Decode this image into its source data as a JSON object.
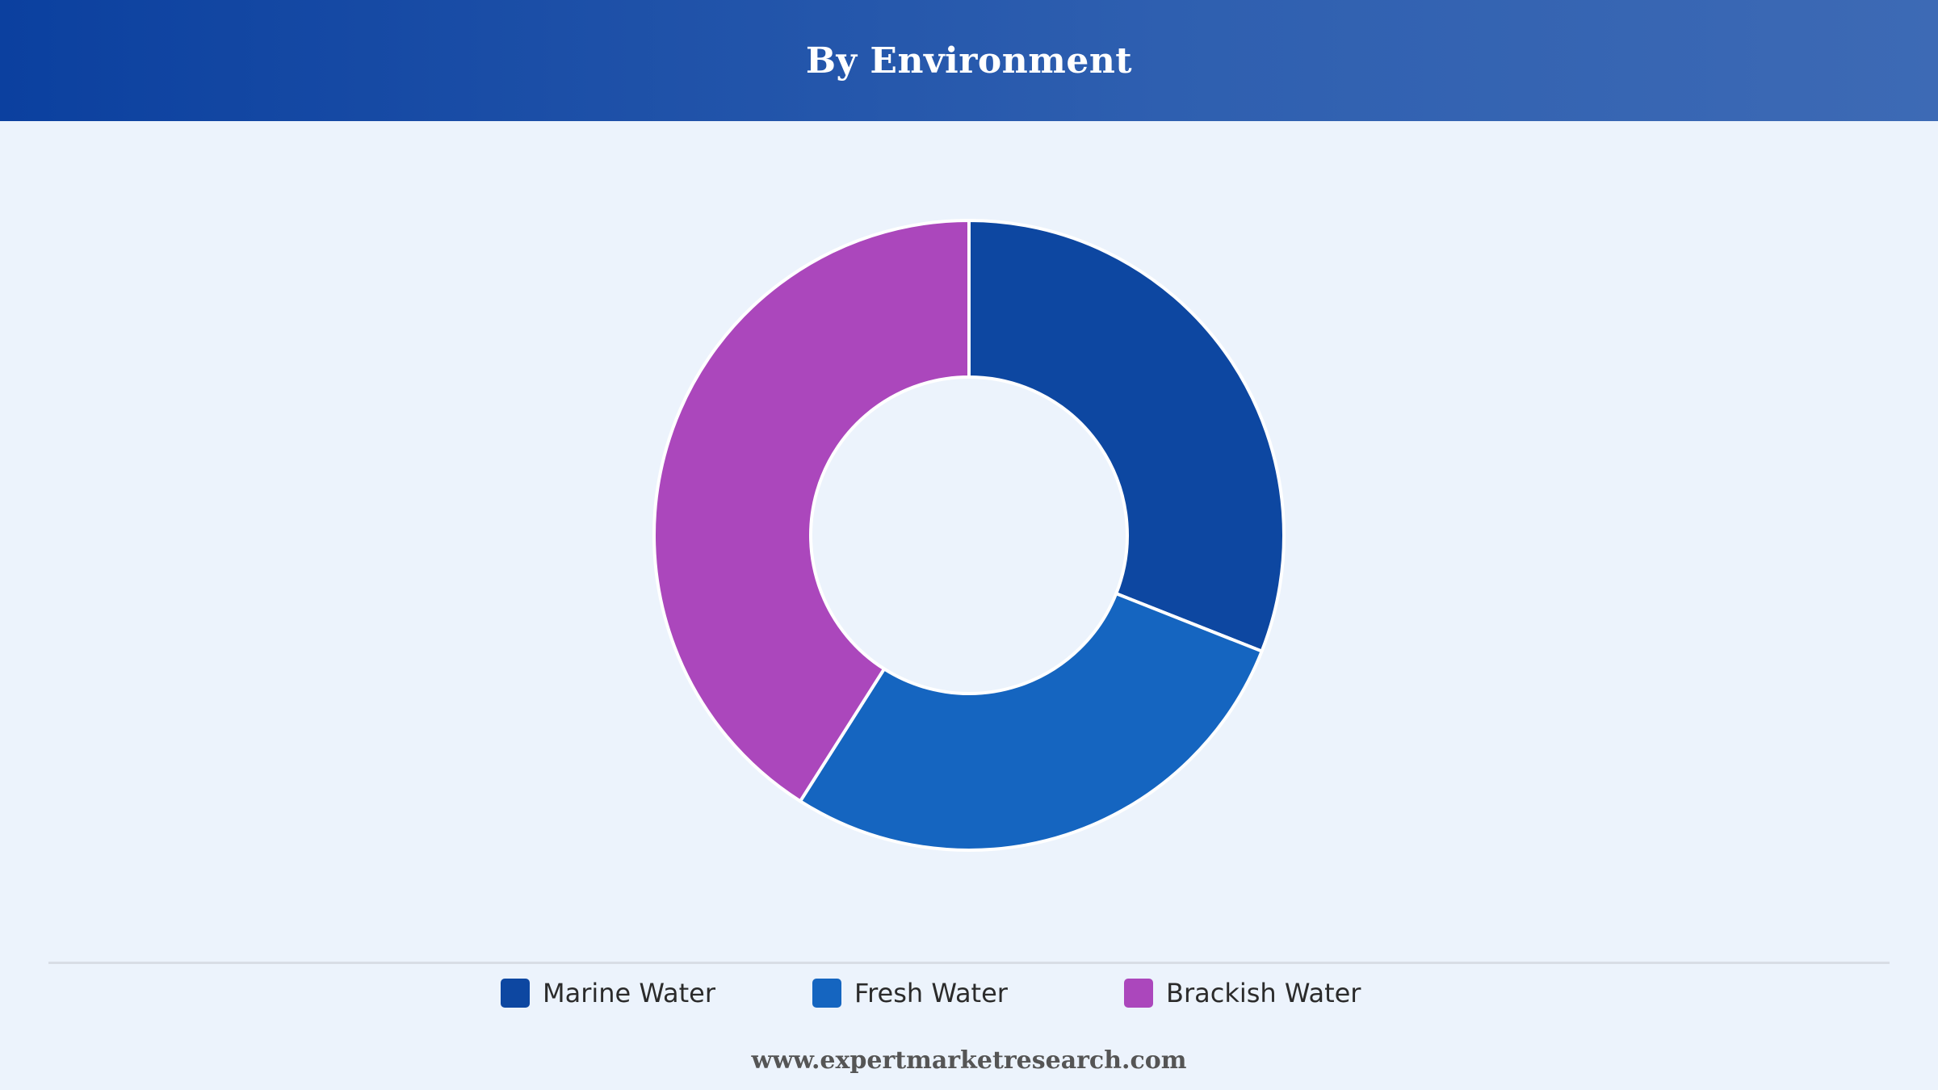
{
  "header": {
    "title": "By Environment"
  },
  "chart_data": {
    "type": "pie",
    "style": "donut",
    "title": "By Environment",
    "categories": [
      "Marine Water",
      "Fresh Water",
      "Brackish Water"
    ],
    "values": [
      31,
      28,
      41
    ],
    "colors": [
      "#0d47a1",
      "#1565c0",
      "#ab47bc"
    ],
    "legend_position": "bottom"
  },
  "legend": {
    "items": [
      {
        "label": "Marine Water",
        "color": "#0d47a1"
      },
      {
        "label": "Fresh Water",
        "color": "#1565c0"
      },
      {
        "label": "Brackish Water",
        "color": "#ab47bc"
      }
    ]
  },
  "footer": {
    "url": "www.expertmarketresearch.com"
  }
}
